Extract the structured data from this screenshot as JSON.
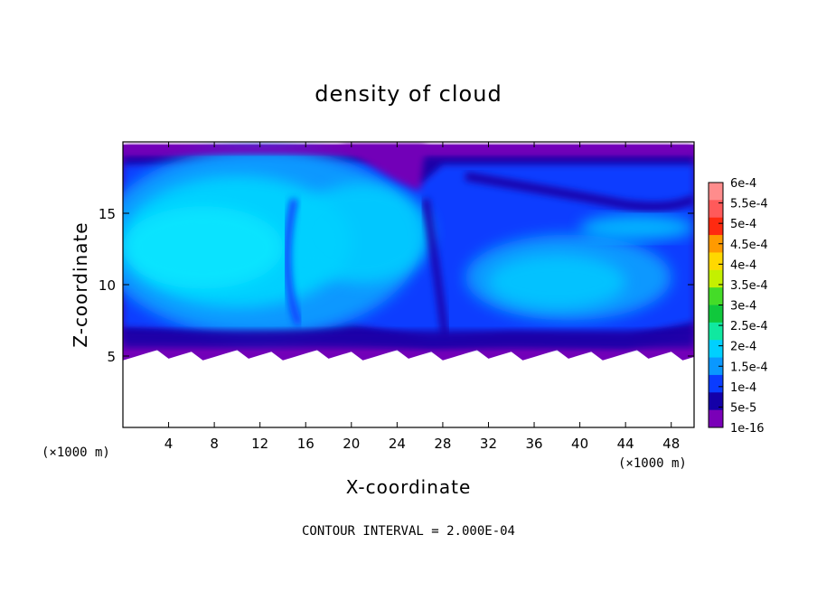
{
  "chart_data": {
    "type": "heatmap",
    "title": "density of cloud",
    "xlabel": "X-coordinate",
    "ylabel": "Z-coordinate",
    "x_unit_label": "(×1000 m)",
    "x_unit_label_right": "(×1000 m)",
    "xlim": [
      0,
      50
    ],
    "ylim": [
      0,
      20
    ],
    "x_ticks": [
      4,
      8,
      12,
      16,
      20,
      24,
      28,
      32,
      36,
      40,
      44,
      48
    ],
    "y_ticks": [
      5,
      10,
      15
    ],
    "footer": "CONTOUR INTERVAL = 2.000E-04",
    "colorbar": {
      "labels": [
        "6e-4",
        "5.5e-4",
        "5e-4",
        "4.5e-4",
        "4e-4",
        "3.5e-4",
        "3e-4",
        "2.5e-4",
        "2e-4",
        "1.5e-4",
        "1e-4",
        "5e-5",
        "1e-16"
      ],
      "colors": [
        "#ff8c8c",
        "#ff5a5a",
        "#ff2a10",
        "#ff9a00",
        "#ffd800",
        "#c4f000",
        "#44dc28",
        "#10c83c",
        "#10e8a0",
        "#00d0ff",
        "#0a98ff",
        "#0a3cff",
        "#1400a8",
        "#7a00b8"
      ]
    },
    "cloud_base_z": 5,
    "cloud_top_z": 19.8,
    "field_colors": {
      "edge": "#7200b8",
      "dark_blue": "#1a00a8",
      "blue": "#0a3cff",
      "mid_blue": "#0a98ff",
      "cyan": "#00d0ff",
      "bright_cyan": "#10e8ff"
    }
  }
}
